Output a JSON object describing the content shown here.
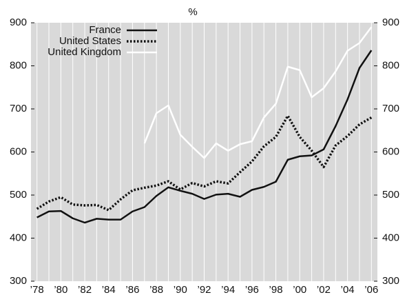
{
  "chart_data": {
    "type": "line",
    "title": "%",
    "categories": [
      "’78",
      null,
      "’80",
      null,
      "’82",
      null,
      "’84",
      null,
      "’86",
      null,
      "’88",
      null,
      "’90",
      null,
      "’92",
      null,
      "’94",
      null,
      "’96",
      null,
      "’98",
      null,
      "’00",
      null,
      "’02",
      null,
      "’04",
      null,
      "’06"
    ],
    "series": [
      {
        "name": "France",
        "color": "#111111",
        "style": "solid",
        "values": [
          448,
          462,
          463,
          446,
          436,
          445,
          443,
          443,
          462,
          472,
          498,
          518,
          510,
          503,
          491,
          501,
          503,
          496,
          512,
          519,
          531,
          582,
          590,
          592,
          606,
          660,
          722,
          795,
          836
        ]
      },
      {
        "name": "United States",
        "color": "#111111",
        "style": "dotted",
        "values": [
          468,
          485,
          495,
          478,
          476,
          477,
          465,
          490,
          511,
          517,
          522,
          532,
          513,
          528,
          520,
          532,
          527,
          553,
          578,
          613,
          635,
          684,
          635,
          603,
          565,
          615,
          637,
          664,
          680
        ]
      },
      {
        "name": "United Kingdom",
        "color": "#ffffff",
        "style": "solid",
        "values": [
          null,
          null,
          null,
          null,
          null,
          null,
          null,
          null,
          null,
          620,
          690,
          708,
          640,
          612,
          586,
          620,
          603,
          618,
          625,
          680,
          712,
          798,
          790,
          727,
          748,
          787,
          835,
          853,
          890
        ]
      }
    ],
    "ylim": [
      300,
      900
    ],
    "yticks": [
      300,
      400,
      500,
      600,
      700,
      800,
      900
    ],
    "y2lim": [
      300,
      900
    ],
    "y2ticks": [
      300,
      400,
      500,
      600,
      700,
      800,
      900
    ],
    "legend": "top-left",
    "background": "#d9d9d9"
  }
}
